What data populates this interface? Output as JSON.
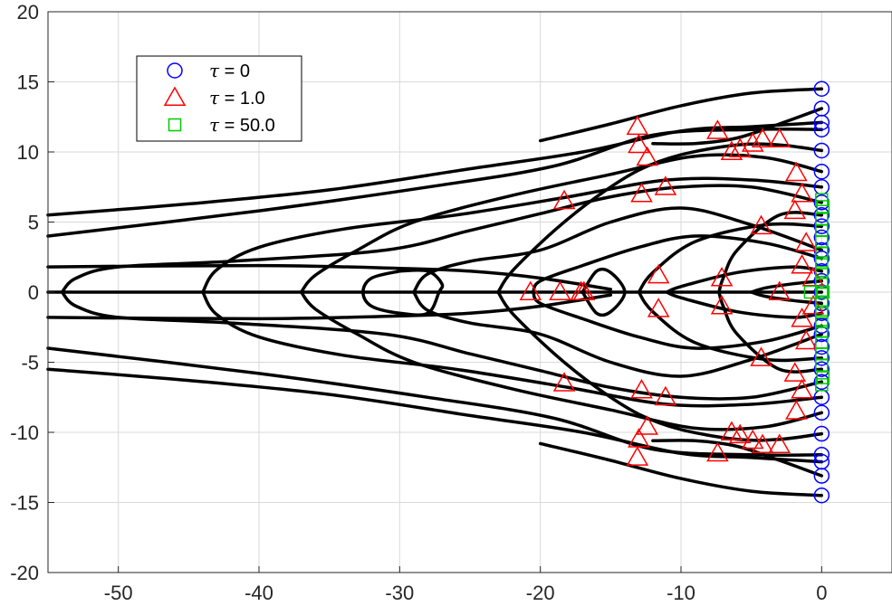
{
  "chart_data": {
    "type": "line",
    "title": "",
    "xlabel": "",
    "ylabel": "",
    "xlim": [
      -55,
      5
    ],
    "ylim": [
      -20,
      20
    ],
    "x_ticks": [
      -50,
      -40,
      -30,
      -20,
      -10,
      0
    ],
    "y_ticks": [
      -20,
      -15,
      -10,
      -5,
      0,
      5,
      10,
      15,
      20
    ],
    "grid": true,
    "box": true,
    "legend_position": "top-left",
    "colors": {
      "trajectory": "#000000",
      "tau0": "#0000ff",
      "tau1": "#ff0000",
      "tau50": "#00cc00",
      "grid": "#d9d9d9",
      "axis": "#262626"
    },
    "legend": [
      {
        "label": "= 0",
        "symbol": "τ",
        "marker": "circle",
        "color": "#0000ff"
      },
      {
        "label": "= 1.0",
        "symbol": "τ",
        "marker": "triangle",
        "color": "#ff0000"
      },
      {
        "label": "= 50.0",
        "symbol": "τ",
        "marker": "square",
        "color": "#00cc00"
      }
    ],
    "series": [
      {
        "name": "τ = 0",
        "marker": "circle",
        "points": [
          [
            0,
            14.5
          ],
          [
            0,
            13.1
          ],
          [
            0,
            12.1
          ],
          [
            0,
            11.6
          ],
          [
            0,
            10.1
          ],
          [
            0,
            8.6
          ],
          [
            0,
            7.5
          ],
          [
            0,
            6.4
          ],
          [
            0,
            5.5
          ],
          [
            0,
            4.7
          ],
          [
            0,
            3.9
          ],
          [
            0,
            3.0
          ],
          [
            0,
            2.4
          ],
          [
            0,
            1.5
          ],
          [
            0,
            0.8
          ],
          [
            0,
            0
          ],
          [
            0,
            -0.8
          ],
          [
            0,
            -1.5
          ],
          [
            0,
            -2.4
          ],
          [
            0,
            -3.0
          ],
          [
            0,
            -3.9
          ],
          [
            0,
            -4.7
          ],
          [
            0,
            -5.5
          ],
          [
            0,
            -6.4
          ],
          [
            0,
            -7.5
          ],
          [
            0,
            -8.6
          ],
          [
            0,
            -10.1
          ],
          [
            0,
            -11.6
          ],
          [
            0,
            -12.1
          ],
          [
            0,
            -13.1
          ],
          [
            0,
            -14.5
          ]
        ]
      },
      {
        "name": "τ = 1.0",
        "marker": "triangle",
        "points": [
          [
            -13.1,
            11.8
          ],
          [
            -13.0,
            10.5
          ],
          [
            -12.4,
            9.6
          ],
          [
            -7.4,
            11.5
          ],
          [
            -6.4,
            10.0
          ],
          [
            -5.8,
            10.2
          ],
          [
            -4.9,
            10.6
          ],
          [
            -4.2,
            10.9
          ],
          [
            -3.0,
            10.9
          ],
          [
            -1.8,
            8.5
          ],
          [
            -1.4,
            7.0
          ],
          [
            -18.3,
            6.5
          ],
          [
            -12.8,
            7.0
          ],
          [
            -11.1,
            7.5
          ],
          [
            -1.9,
            5.8
          ],
          [
            -4.3,
            4.7
          ],
          [
            -1.1,
            3.5
          ],
          [
            -1.4,
            1.9
          ],
          [
            -0.6,
            1.0
          ],
          [
            -11.6,
            1.2
          ],
          [
            -7.1,
            1.0
          ],
          [
            -20.7,
            0
          ],
          [
            -18.6,
            0
          ],
          [
            -17.1,
            0
          ],
          [
            -16.9,
            0
          ],
          [
            -3.0,
            0
          ],
          [
            -11.6,
            -1.2
          ],
          [
            -7.1,
            -1.0
          ],
          [
            -0.6,
            -1.0
          ],
          [
            -1.4,
            -1.9
          ],
          [
            -1.1,
            -3.5
          ],
          [
            -4.3,
            -4.7
          ],
          [
            -1.9,
            -5.8
          ],
          [
            -18.3,
            -6.5
          ],
          [
            -12.8,
            -7.0
          ],
          [
            -11.1,
            -7.5
          ],
          [
            -1.4,
            -7.0
          ],
          [
            -1.8,
            -8.5
          ],
          [
            -12.4,
            -9.6
          ],
          [
            -13.0,
            -10.5
          ],
          [
            -13.1,
            -11.8
          ],
          [
            -7.4,
            -11.5
          ],
          [
            -6.4,
            -10.0
          ],
          [
            -5.8,
            -10.2
          ],
          [
            -4.9,
            -10.6
          ],
          [
            -4.2,
            -10.9
          ],
          [
            -3.0,
            -10.9
          ]
        ]
      },
      {
        "name": "τ = 50.0",
        "marker": "square",
        "points": [
          [
            0,
            6.6
          ],
          [
            0.1,
            6.1
          ],
          [
            0,
            5.2
          ],
          [
            0,
            4.4
          ],
          [
            0,
            3.6
          ],
          [
            0,
            2.8
          ],
          [
            0,
            2.1
          ],
          [
            0,
            1.4
          ],
          [
            0,
            0.7
          ],
          [
            -0.8,
            0
          ],
          [
            0,
            0
          ],
          [
            0.1,
            0
          ],
          [
            0,
            -0.7
          ],
          [
            0,
            -1.4
          ],
          [
            0,
            -2.1
          ],
          [
            0,
            -2.8
          ],
          [
            0,
            -3.6
          ],
          [
            0,
            -4.4
          ],
          [
            0,
            -5.2
          ],
          [
            0.1,
            -6.1
          ],
          [
            0,
            -6.6
          ]
        ]
      }
    ],
    "trajectories": [
      [
        [
          0,
          14.5
        ],
        [
          -5,
          14.2
        ],
        [
          -10,
          13.3
        ],
        [
          -15,
          12.0
        ],
        [
          -20,
          10.8
        ]
      ],
      [
        [
          0,
          13.1
        ],
        [
          -3,
          12.0
        ],
        [
          -6,
          11.0
        ],
        [
          -9,
          10.6
        ],
        [
          -12,
          10.6
        ]
      ],
      [
        [
          0,
          12.1
        ],
        [
          -5,
          11.8
        ],
        [
          -10,
          11.5
        ],
        [
          -17,
          10.0
        ],
        [
          -25,
          8.8
        ],
        [
          -35,
          7.3
        ],
        [
          -45,
          6.3
        ],
        [
          -55,
          5.5
        ]
      ],
      [
        [
          0,
          11.6
        ],
        [
          -5,
          11.6
        ],
        [
          -12,
          11.2
        ],
        [
          -19,
          9.0
        ],
        [
          -28,
          7.5
        ],
        [
          -40,
          5.8
        ],
        [
          -55,
          4.0
        ]
      ],
      [
        [
          0,
          10.1
        ],
        [
          -3,
          10.5
        ],
        [
          -6,
          10.5
        ],
        [
          -10,
          9.8
        ],
        [
          -13,
          8.7
        ],
        [
          -16,
          6.8
        ],
        [
          -19,
          4.4
        ],
        [
          -22,
          1.5
        ],
        [
          -23,
          0
        ]
      ],
      [
        [
          0,
          8.6
        ],
        [
          -4,
          9.6
        ],
        [
          -9,
          9.7
        ],
        [
          -15,
          8.4
        ],
        [
          -22,
          6.9
        ],
        [
          -29,
          5.0
        ],
        [
          -33,
          3.0
        ],
        [
          -36,
          1.2
        ],
        [
          -37,
          0
        ]
      ],
      [
        [
          0,
          7.5
        ],
        [
          -5,
          8.0
        ],
        [
          -11,
          8.0
        ],
        [
          -18,
          6.8
        ],
        [
          -26,
          5.5
        ],
        [
          -34,
          4.5
        ],
        [
          -40,
          3.2
        ],
        [
          -43,
          1.6
        ],
        [
          -44,
          0
        ]
      ],
      [
        [
          0,
          6.4
        ],
        [
          -5,
          7.5
        ],
        [
          -10,
          7.5
        ],
        [
          -15,
          6.8
        ],
        [
          -20,
          5.6
        ],
        [
          -25,
          4.4
        ],
        [
          -31,
          3.0
        ],
        [
          -42,
          2.2
        ],
        [
          -50,
          1.8
        ],
        [
          -53,
          1.0
        ],
        [
          -54,
          0
        ]
      ],
      [
        [
          -55,
          1.8
        ],
        [
          -40,
          1.9
        ],
        [
          -30,
          1.7
        ],
        [
          -25,
          1.5
        ],
        [
          -20,
          1.0
        ],
        [
          -15,
          0.2
        ]
      ],
      [
        [
          0,
          3.0
        ],
        [
          -5,
          4.8
        ],
        [
          -10,
          6.0
        ],
        [
          -15,
          5.0
        ],
        [
          -20,
          3.0
        ],
        [
          -25,
          2.2
        ],
        [
          -28,
          1.3
        ],
        [
          -29,
          0
        ]
      ],
      [
        [
          -30,
          1.5
        ],
        [
          -28,
          1.5
        ],
        [
          -27,
          0.6
        ],
        [
          -27.2,
          0
        ],
        [
          -28,
          -1.5
        ],
        [
          -30,
          -1.5
        ],
        [
          -32,
          -1.0
        ],
        [
          -32.6,
          0
        ],
        [
          -32,
          1.0
        ],
        [
          -30,
          1.5
        ]
      ],
      [
        [
          0,
          2.4
        ],
        [
          -4,
          3.5
        ],
        [
          -9,
          4.0
        ],
        [
          -13,
          3.2
        ],
        [
          -17,
          1.9
        ],
        [
          -20,
          0.8
        ],
        [
          -20.5,
          0
        ]
      ],
      [
        [
          0,
          4.7
        ],
        [
          -4,
          4.8
        ],
        [
          -9,
          3.6
        ],
        [
          -12,
          1.4
        ],
        [
          -13,
          0
        ]
      ],
      [
        [
          0,
          5.5
        ],
        [
          -3,
          5.5
        ],
        [
          -6,
          3.0
        ],
        [
          -7,
          1.0
        ],
        [
          -7.3,
          0
        ]
      ],
      [
        [
          0,
          1.5
        ],
        [
          -2,
          1.8
        ],
        [
          -6,
          1.4
        ],
        [
          -10,
          0.4
        ],
        [
          -11,
          0
        ]
      ],
      [
        [
          0,
          0.8
        ],
        [
          -2,
          0.6
        ],
        [
          -4,
          0.3
        ],
        [
          -5,
          0
        ]
      ],
      [
        [
          -55,
          0
        ],
        [
          -30,
          0
        ],
        [
          -15,
          0
        ],
        [
          0,
          0
        ]
      ],
      [
        [
          -17,
          0
        ],
        [
          -16,
          1.5
        ],
        [
          -15,
          1.4
        ],
        [
          -14,
          0
        ],
        [
          -15,
          -1.4
        ],
        [
          -16,
          -1.5
        ],
        [
          -17,
          0
        ]
      ],
      [
        [
          0,
          -0.8
        ],
        [
          -2,
          -0.6
        ],
        [
          -4,
          -0.3
        ],
        [
          -5,
          0
        ]
      ],
      [
        [
          0,
          -1.5
        ],
        [
          -2,
          -1.8
        ],
        [
          -6,
          -1.4
        ],
        [
          -10,
          -0.4
        ],
        [
          -11,
          0
        ]
      ],
      [
        [
          0,
          -5.5
        ],
        [
          -3,
          -5.5
        ],
        [
          -6,
          -3.0
        ],
        [
          -7,
          -1.0
        ],
        [
          -7.3,
          0
        ]
      ],
      [
        [
          0,
          -4.7
        ],
        [
          -4,
          -4.8
        ],
        [
          -9,
          -3.6
        ],
        [
          -12,
          -1.4
        ],
        [
          -13,
          0
        ]
      ],
      [
        [
          0,
          -2.4
        ],
        [
          -4,
          -3.5
        ],
        [
          -9,
          -4.0
        ],
        [
          -13,
          -3.2
        ],
        [
          -17,
          -1.9
        ],
        [
          -20,
          -0.8
        ],
        [
          -20.5,
          0
        ]
      ],
      [
        [
          0,
          -3.0
        ],
        [
          -5,
          -4.8
        ],
        [
          -10,
          -6.0
        ],
        [
          -15,
          -5.0
        ],
        [
          -20,
          -3.0
        ],
        [
          -25,
          -2.2
        ],
        [
          -28,
          -1.3
        ],
        [
          -29,
          0
        ]
      ],
      [
        [
          -55,
          -1.8
        ],
        [
          -40,
          -1.9
        ],
        [
          -30,
          -1.7
        ],
        [
          -25,
          -1.5
        ],
        [
          -20,
          -1.0
        ],
        [
          -15,
          -0.2
        ]
      ],
      [
        [
          0,
          -6.4
        ],
        [
          -5,
          -7.5
        ],
        [
          -10,
          -7.5
        ],
        [
          -15,
          -6.8
        ],
        [
          -20,
          -5.6
        ],
        [
          -25,
          -4.4
        ],
        [
          -31,
          -3.0
        ],
        [
          -42,
          -2.2
        ],
        [
          -50,
          -1.8
        ],
        [
          -53,
          -1.0
        ],
        [
          -54,
          0
        ]
      ],
      [
        [
          0,
          -7.5
        ],
        [
          -5,
          -8.0
        ],
        [
          -11,
          -8.0
        ],
        [
          -18,
          -6.8
        ],
        [
          -26,
          -5.5
        ],
        [
          -34,
          -4.5
        ],
        [
          -40,
          -3.2
        ],
        [
          -43,
          -1.6
        ],
        [
          -44,
          0
        ]
      ],
      [
        [
          0,
          -8.6
        ],
        [
          -4,
          -9.6
        ],
        [
          -9,
          -9.7
        ],
        [
          -15,
          -8.4
        ],
        [
          -22,
          -6.9
        ],
        [
          -29,
          -5.0
        ],
        [
          -33,
          -3.0
        ],
        [
          -36,
          -1.2
        ],
        [
          -37,
          0
        ]
      ],
      [
        [
          0,
          -10.1
        ],
        [
          -3,
          -10.5
        ],
        [
          -6,
          -10.5
        ],
        [
          -10,
          -9.8
        ],
        [
          -13,
          -8.7
        ],
        [
          -16,
          -6.8
        ],
        [
          -19,
          -4.4
        ],
        [
          -22,
          -1.5
        ],
        [
          -23,
          0
        ]
      ],
      [
        [
          0,
          -11.6
        ],
        [
          -5,
          -11.6
        ],
        [
          -12,
          -11.2
        ],
        [
          -19,
          -9.0
        ],
        [
          -28,
          -7.5
        ],
        [
          -40,
          -5.8
        ],
        [
          -55,
          -4.0
        ]
      ],
      [
        [
          0,
          -12.1
        ],
        [
          -5,
          -11.8
        ],
        [
          -10,
          -11.5
        ],
        [
          -17,
          -10.0
        ],
        [
          -25,
          -8.8
        ],
        [
          -35,
          -7.3
        ],
        [
          -45,
          -6.3
        ],
        [
          -55,
          -5.5
        ]
      ],
      [
        [
          0,
          -13.1
        ],
        [
          -3,
          -12.0
        ],
        [
          -6,
          -11.0
        ],
        [
          -9,
          -10.6
        ],
        [
          -12,
          -10.6
        ]
      ],
      [
        [
          0,
          -14.5
        ],
        [
          -5,
          -14.2
        ],
        [
          -10,
          -13.3
        ],
        [
          -15,
          -12.0
        ],
        [
          -20,
          -10.8
        ]
      ]
    ]
  }
}
